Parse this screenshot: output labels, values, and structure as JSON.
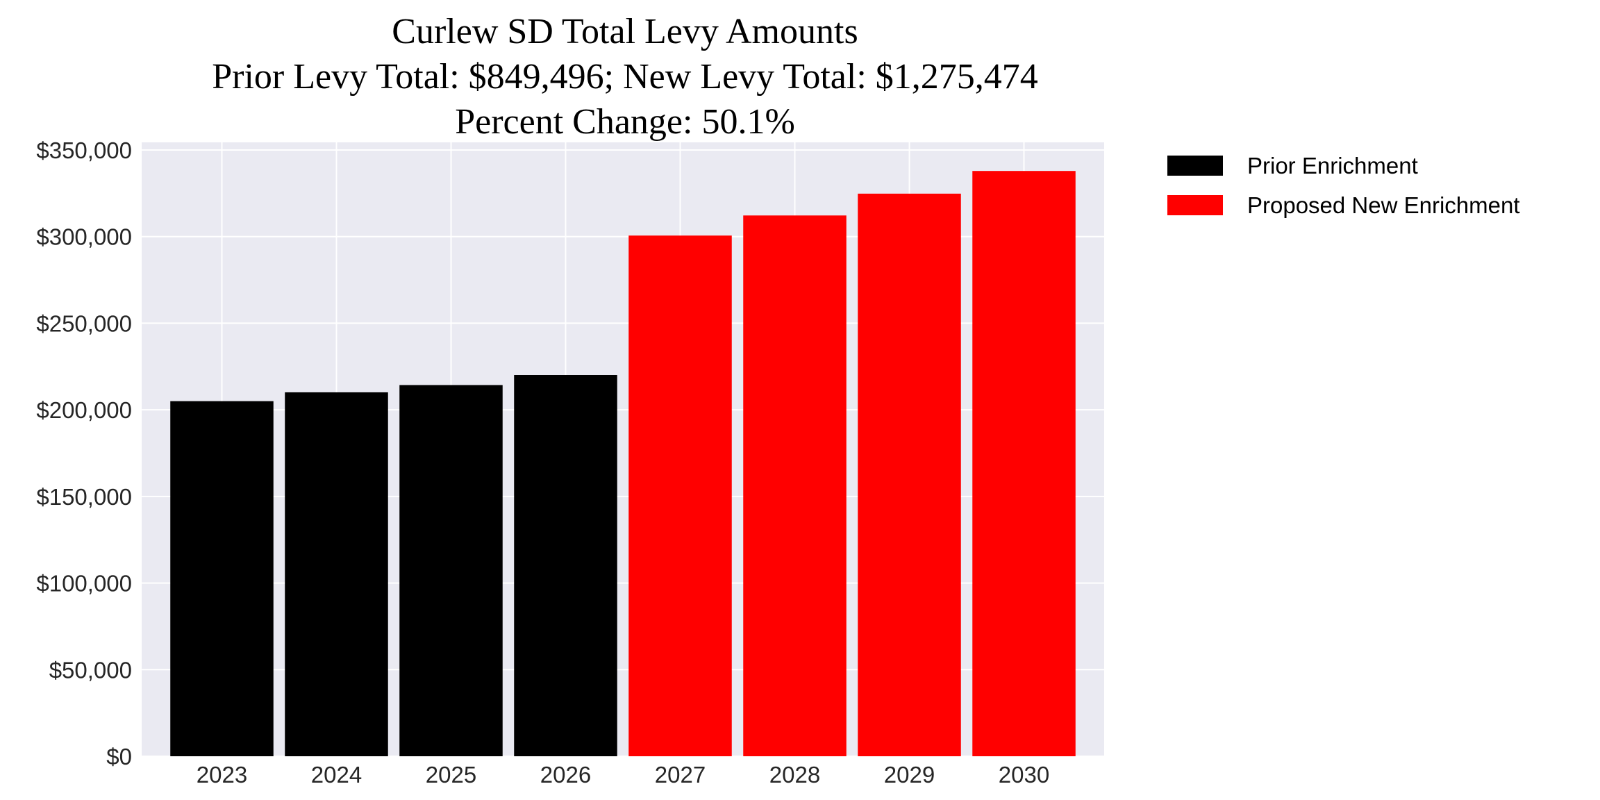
{
  "chart_data": {
    "type": "bar",
    "title_lines": [
      "Curlew SD Total Levy Amounts",
      "Prior Levy Total:  $849,496; New Levy Total: $1,275,474",
      "Percent Change: 50.1%"
    ],
    "categories": [
      "2023",
      "2024",
      "2025",
      "2026",
      "2027",
      "2028",
      "2029",
      "2030"
    ],
    "series": [
      {
        "name": "Prior Enrichment",
        "color": "#000000",
        "values": [
          205000,
          210100,
          214300,
          220100,
          null,
          null,
          null,
          null
        ]
      },
      {
        "name": "Proposed New Enrichment",
        "color": "#ff0000",
        "values": [
          null,
          null,
          null,
          null,
          300600,
          312200,
          324800,
          337900
        ]
      }
    ],
    "xlabel": "",
    "ylabel": "",
    "ylim": [
      0,
      355000
    ],
    "yticks": [
      0,
      50000,
      100000,
      150000,
      200000,
      250000,
      300000,
      350000
    ],
    "ytick_labels": [
      "$0",
      "$50,000",
      "$100,000",
      "$150,000",
      "$200,000",
      "$250,000",
      "$300,000",
      "$350,000"
    ],
    "grid": true,
    "background": "#eaeaf2",
    "legend_placement": "outside-top-right"
  }
}
